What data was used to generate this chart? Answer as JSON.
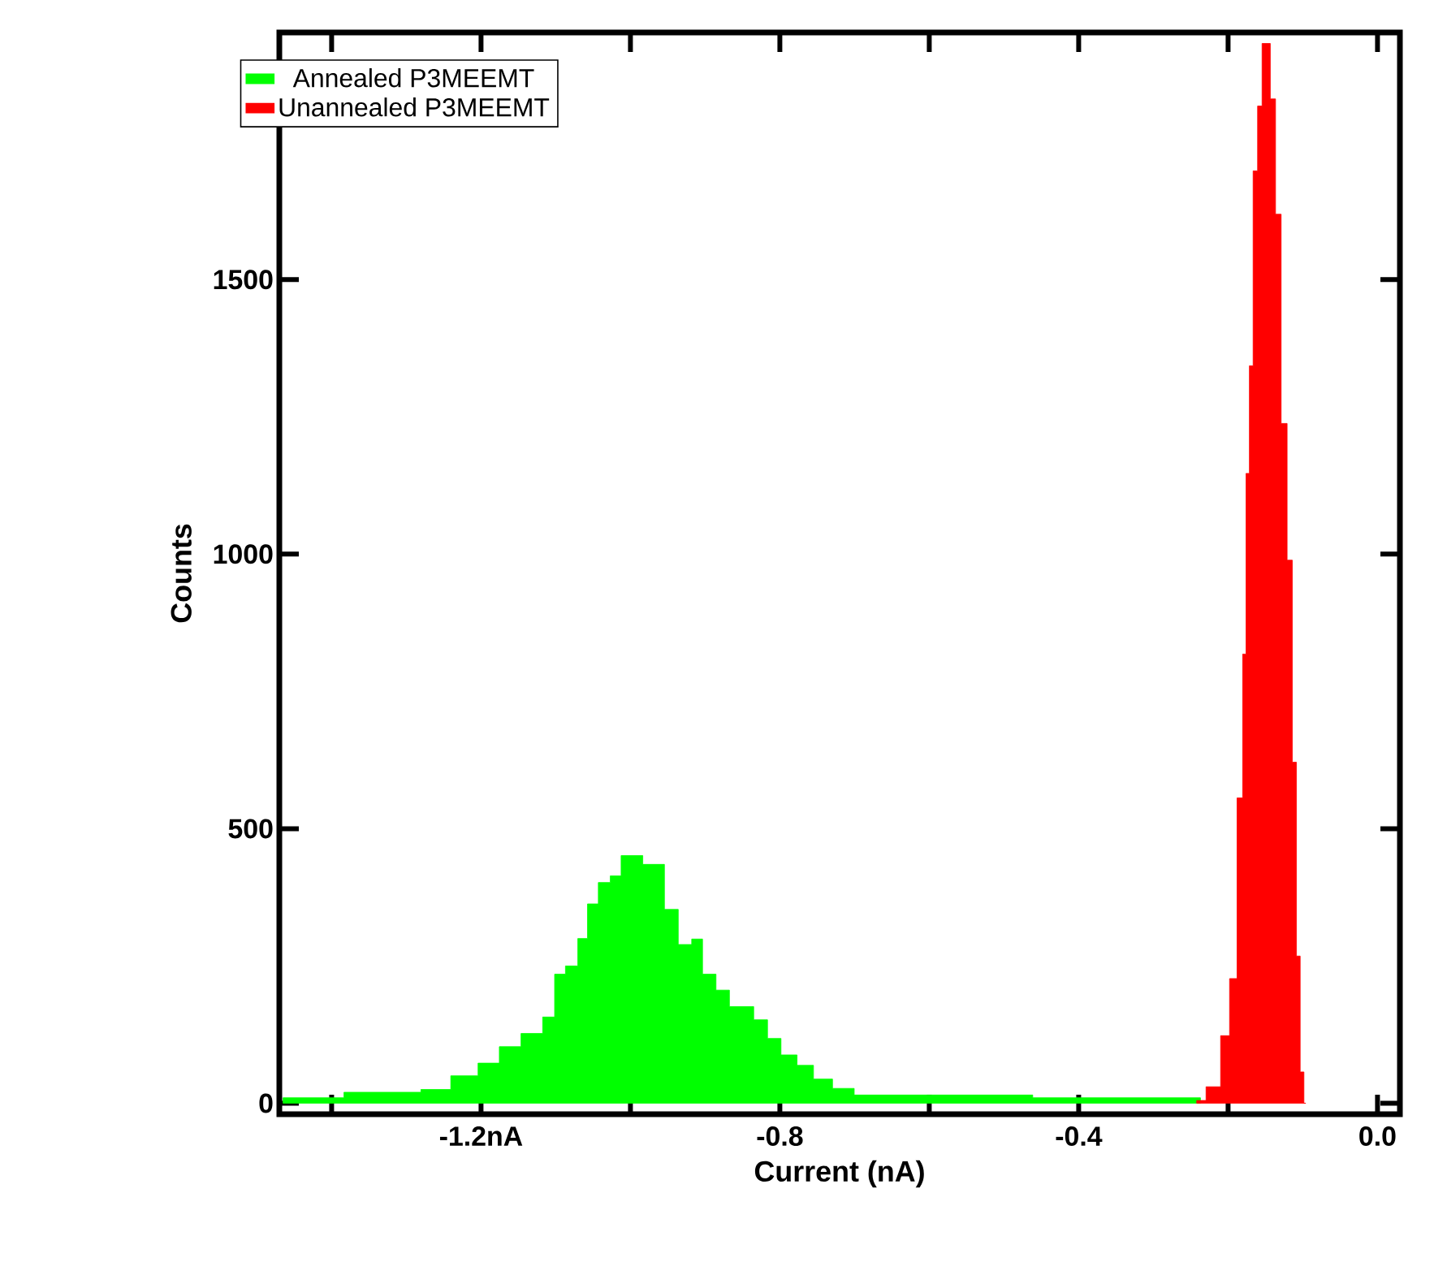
{
  "chart_data": {
    "type": "area",
    "xlabel": "Current (nA)",
    "ylabel": "Counts",
    "series": [
      {
        "name": "Annealed P3MEEMT",
        "color": "#00ff00",
        "x": [
          -1.465,
          -1.302,
          -1.259,
          -1.222,
          -1.186,
          -1.165,
          -1.128,
          -1.107,
          -1.096,
          -1.078,
          -1.063,
          -1.052,
          -1.034,
          -1.02,
          -1.005,
          -0.991,
          -0.976,
          -0.962,
          -0.947,
          -0.925,
          -0.911,
          -0.896,
          -0.875,
          -0.86,
          -0.846,
          -0.824,
          -0.809,
          -0.788,
          -0.766,
          -0.744,
          -0.715,
          -0.686,
          -0.237
        ],
        "values": [
          10,
          20,
          25,
          50,
          73,
          103,
          127,
          157,
          235,
          250,
          300,
          363,
          402,
          414,
          451,
          451,
          435,
          435,
          353,
          289,
          299,
          235,
          206,
          176,
          176,
          152,
          118,
          88,
          69,
          44,
          27,
          15,
          10
        ]
      },
      {
        "name": "Unannealed P3MEEMT",
        "color": "#ff0000",
        "x": [
          -0.242,
          -0.217,
          -0.203,
          -0.193,
          -0.183,
          -0.178,
          -0.174,
          -0.169,
          -0.164,
          -0.157,
          -0.152,
          -0.147,
          -0.14,
          -0.133,
          -0.125,
          -0.117,
          -0.111,
          -0.106,
          -0.101,
          -0.096
        ],
        "values": [
          5,
          30,
          123,
          227,
          556,
          818,
          1147,
          1343,
          1698,
          1816,
          1930,
          1930,
          1829,
          1619,
          1238,
          989,
          621,
          268,
          57,
          0
        ]
      }
    ],
    "xlim": [
      -1.47,
      0.03
    ],
    "ylim": [
      -20,
      1950
    ],
    "xticks": [
      {
        "value": -1.4,
        "label": null
      },
      {
        "value": -1.2,
        "label": "-1.2nA"
      },
      {
        "value": -1.0,
        "label": null
      },
      -0.8,
      {
        "value": -0.6,
        "label": null
      },
      -0.4,
      {
        "value": -0.2,
        "label": null
      },
      {
        "value": 0.0,
        "label": "0.0"
      }
    ],
    "yticks": [
      0,
      500,
      1000,
      1500
    ],
    "legend": "top left"
  }
}
